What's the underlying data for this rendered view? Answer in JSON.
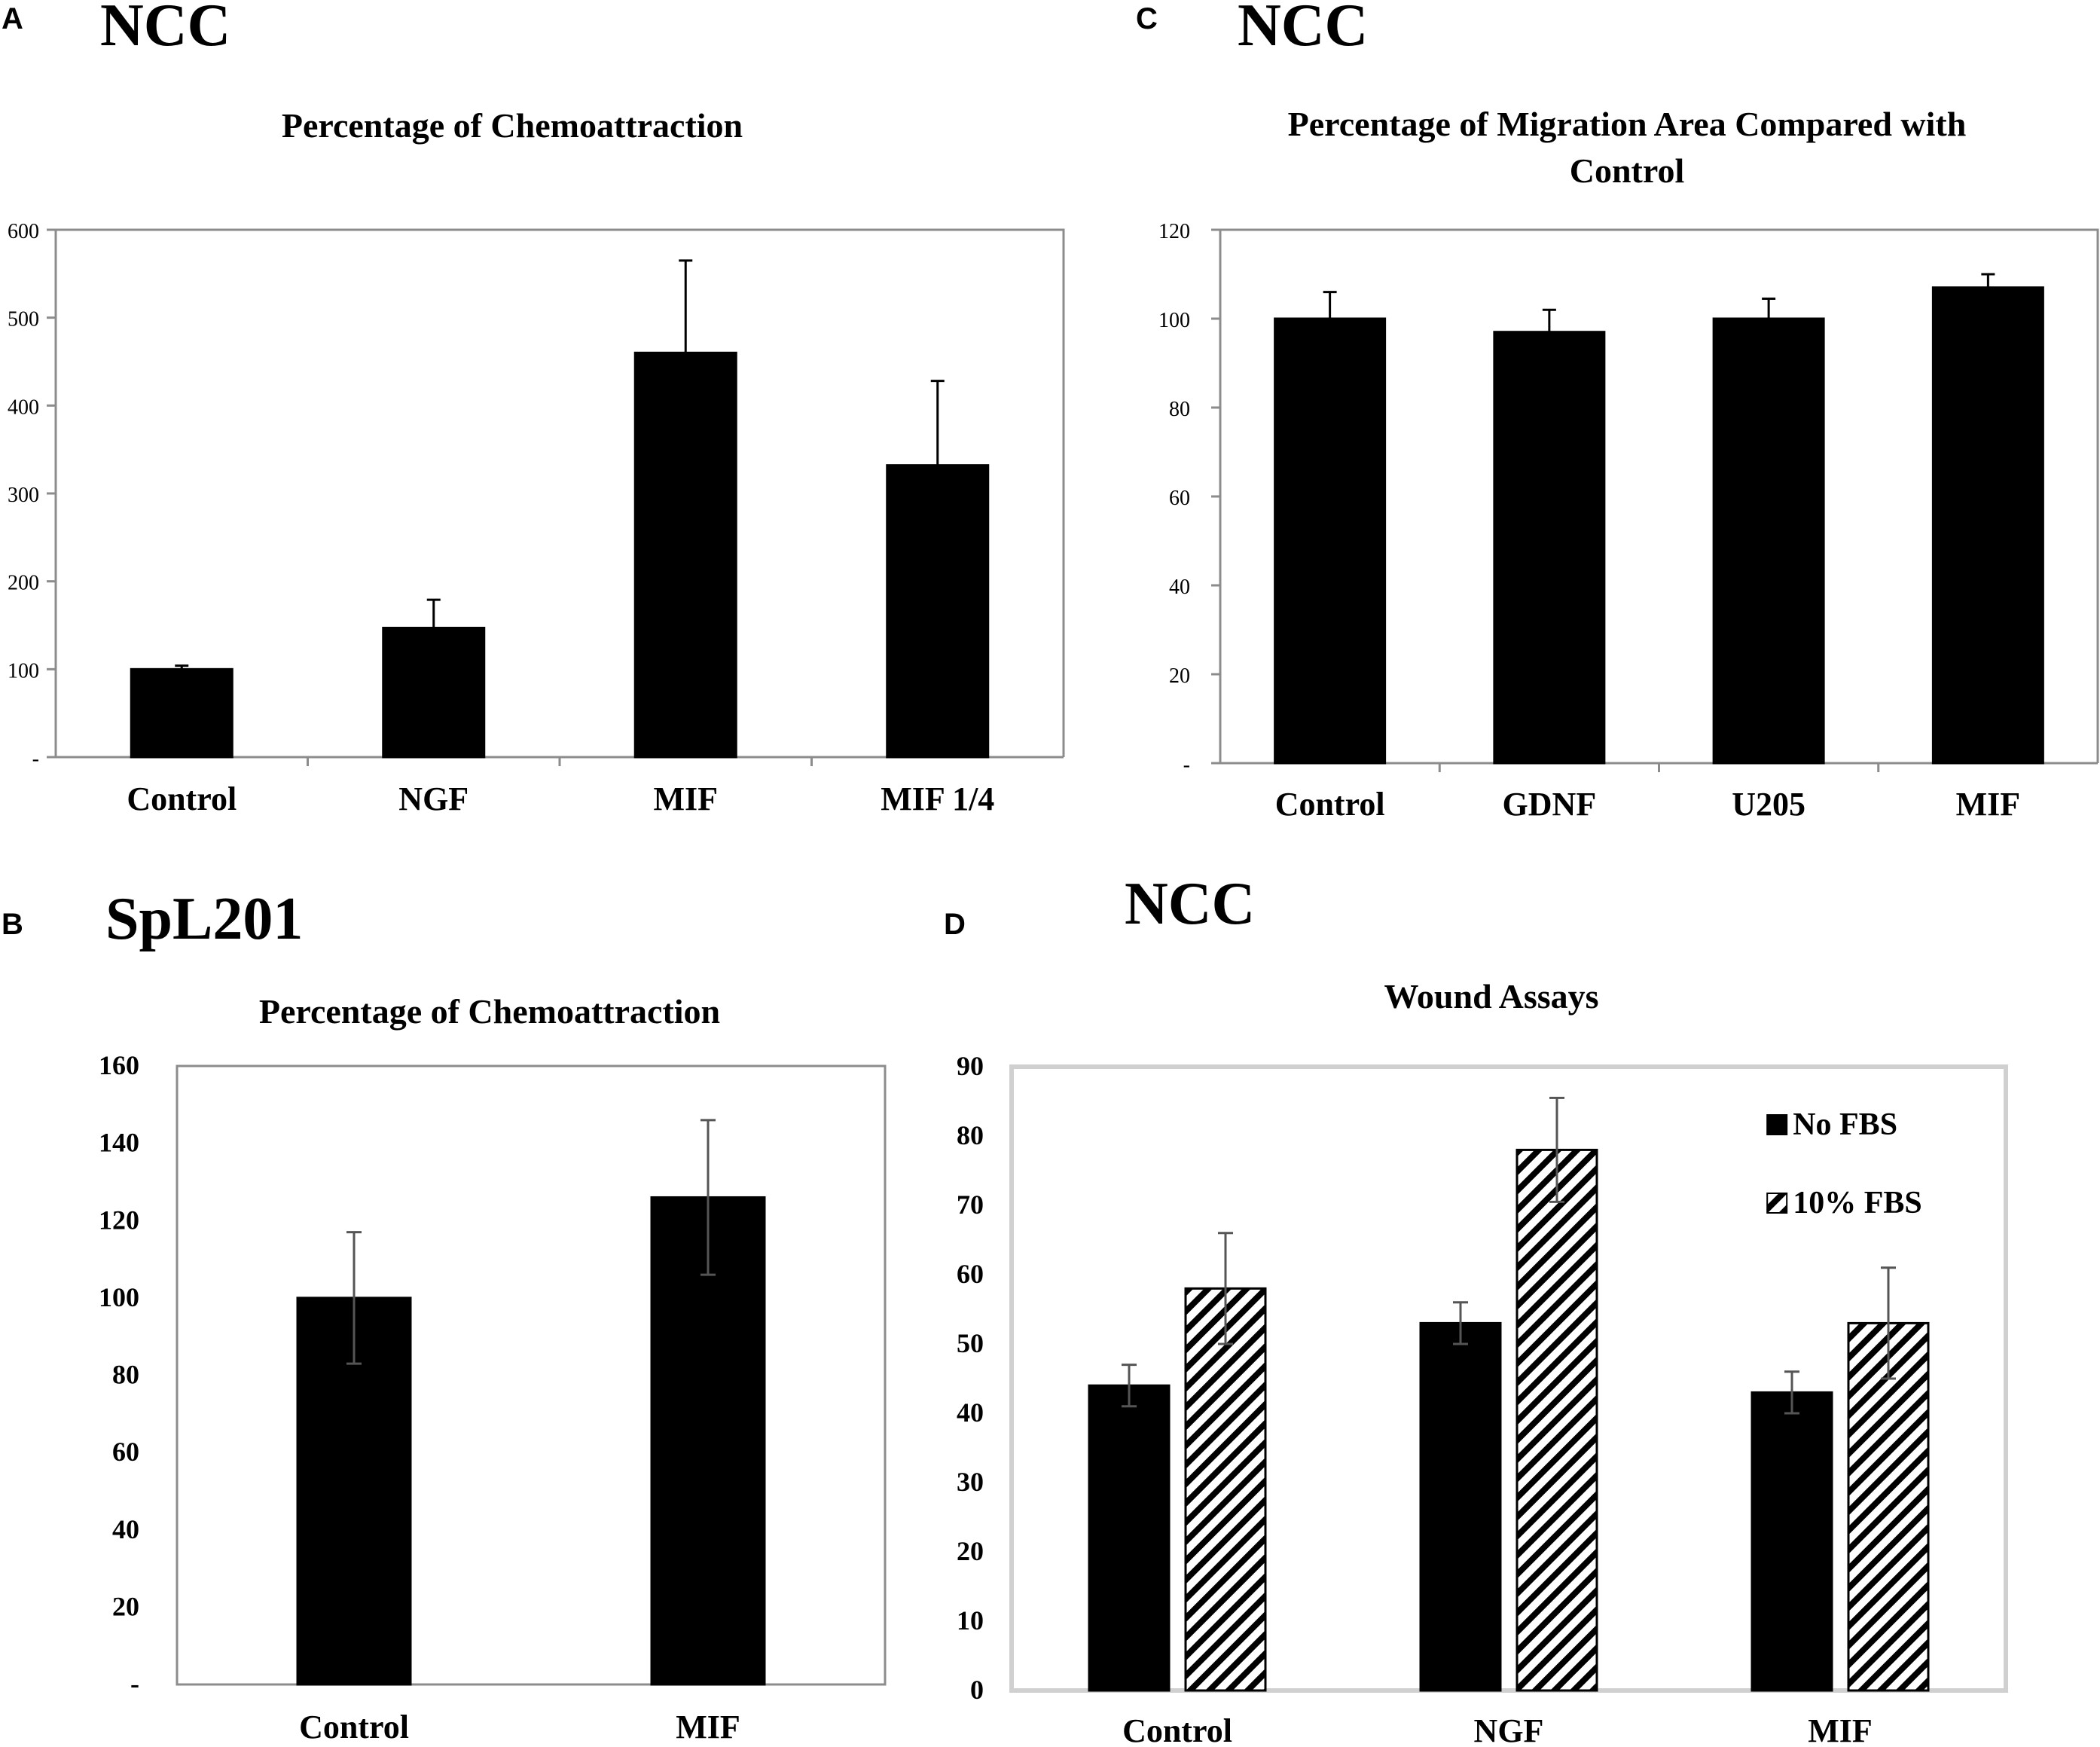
{
  "panels": [
    {
      "letter": "A",
      "heading": "NCC",
      "chart_title": "Percentage of Chemoattraction"
    },
    {
      "letter": "B",
      "heading": "SpL201",
      "chart_title": "Percentage of Chemoattraction"
    },
    {
      "letter": "C",
      "heading": "NCC",
      "chart_title_lines": [
        "Percentage of Migration Area Compared with",
        "Control"
      ]
    },
    {
      "letter": "D",
      "heading": "NCC",
      "chart_title": "Wound Assays"
    }
  ],
  "chart_data": [
    {
      "id": "A",
      "type": "bar",
      "title": "Percentage of Chemoattraction",
      "categories": [
        "Control",
        "NGF",
        "MIF",
        "MIF 1/4"
      ],
      "series": [
        {
          "name": "",
          "values": [
            100,
            147,
            460,
            332
          ],
          "errors": [
            4,
            32,
            105,
            96
          ],
          "color": "#000000"
        }
      ],
      "ylim": [
        0,
        600
      ],
      "yticks": [
        "-",
        "100",
        "200",
        "300",
        "400",
        "500",
        "600"
      ],
      "grid": false
    },
    {
      "id": "B",
      "type": "bar",
      "title": "Percentage of Chemoattraction",
      "categories": [
        "Control",
        "MIF"
      ],
      "series": [
        {
          "name": "",
          "values": [
            100,
            126
          ],
          "errors": [
            17,
            20
          ],
          "color": "#000000"
        }
      ],
      "ylim": [
        0,
        160
      ],
      "yticks": [
        "-",
        "20",
        "40",
        "60",
        "80",
        "100",
        "120",
        "140",
        "160"
      ],
      "grid": false
    },
    {
      "id": "C",
      "type": "bar",
      "title": "Percentage of Migration Area Compared with Control",
      "categories": [
        "Control",
        "GDNF",
        "U205",
        "MIF"
      ],
      "series": [
        {
          "name": "",
          "values": [
            100,
            97,
            100,
            107
          ],
          "errors": [
            6,
            5,
            4.5,
            3
          ],
          "color": "#000000"
        }
      ],
      "ylim": [
        0,
        120
      ],
      "yticks": [
        "-",
        "20",
        "40",
        "60",
        "80",
        "100",
        "120"
      ],
      "grid": false
    },
    {
      "id": "D",
      "type": "bar",
      "title": "Wound Assays",
      "categories": [
        "Control",
        "NGF",
        "MIF"
      ],
      "series": [
        {
          "name": "No FBS",
          "values": [
            44,
            53,
            43
          ],
          "errors": [
            3,
            3,
            3
          ],
          "color": "#000000"
        },
        {
          "name": "10% FBS",
          "values": [
            58,
            78,
            53
          ],
          "errors": [
            8,
            7.5,
            8
          ],
          "color": "#hatched"
        }
      ],
      "ylim": [
        0,
        90
      ],
      "yticks": [
        "0",
        "10",
        "20",
        "30",
        "40",
        "50",
        "60",
        "70",
        "80",
        "90"
      ],
      "legend": "top-right",
      "grid": false
    }
  ]
}
